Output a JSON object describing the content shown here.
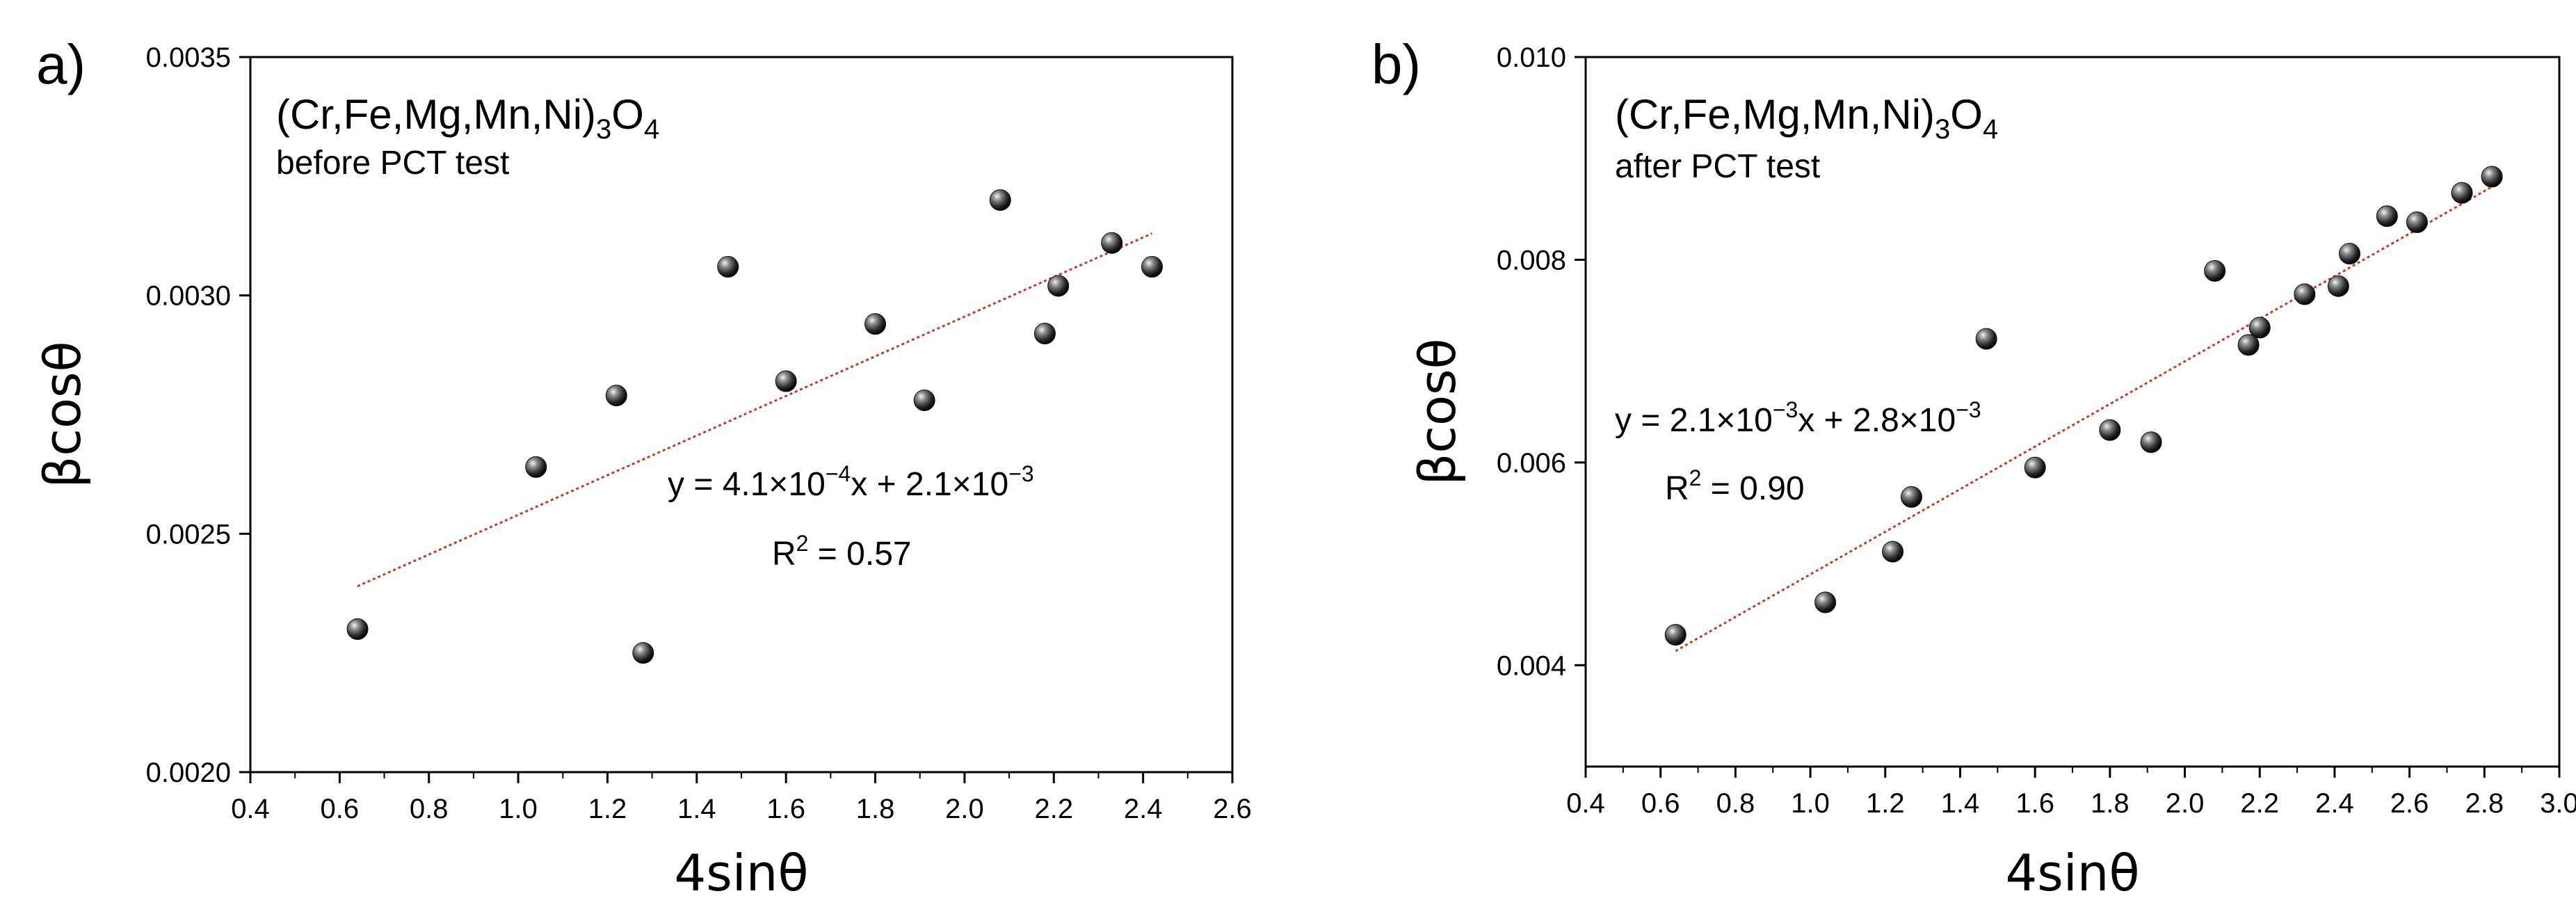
{
  "chart_data": [
    {
      "type": "scatter",
      "panel_label": "a)",
      "compound_parts": [
        "(Cr,Fe,Mg,Mn,Ni)",
        "3",
        "O",
        "4"
      ],
      "subtitle": "before PCT test",
      "xlabel": "4sinθ",
      "ylabel": "βcosθ",
      "xlim": [
        0.4,
        2.6
      ],
      "ylim": [
        0.002,
        0.0035
      ],
      "xticks": [
        0.4,
        0.6,
        0.8,
        1.0,
        1.2,
        1.4,
        1.6,
        1.8,
        2.0,
        2.2,
        2.4,
        2.6
      ],
      "xtick_labels": [
        "0.4",
        "0.6",
        "0.8",
        "1.0",
        "1.2",
        "1.4",
        "1.6",
        "1.8",
        "2.0",
        "2.2",
        "2.4",
        "2.6"
      ],
      "yticks": [
        0.002,
        0.0025,
        0.003,
        0.0035
      ],
      "ytick_labels": [
        "0.0020",
        "0.0025",
        "0.0030",
        "0.0035"
      ],
      "series": [
        {
          "name": "data",
          "x": [
            0.64,
            1.04,
            1.22,
            1.28,
            1.47,
            1.6,
            1.8,
            1.91,
            2.08,
            2.18,
            2.21,
            2.33,
            2.42
          ],
          "y": [
            0.0023,
            0.00264,
            0.00279,
            0.00225,
            0.00306,
            0.00282,
            0.00294,
            0.00278,
            0.0032,
            0.00292,
            0.00302,
            0.00311,
            0.00306
          ]
        }
      ],
      "fit": {
        "x_range": [
          0.64,
          2.42
        ],
        "y_range": [
          0.00239,
          0.00313
        ],
        "color": "#c0392b"
      },
      "equation_parts": [
        "y = 4.1×10",
        "−4",
        "x + 2.1×10",
        "−3"
      ],
      "r2_parts": [
        "R",
        "2",
        " = 0.57"
      ]
    },
    {
      "type": "scatter",
      "panel_label": "b)",
      "compound_parts": [
        "(Cr,Fe,Mg,Mn,Ni)",
        "3",
        "O",
        "4"
      ],
      "subtitle": "after PCT test",
      "xlabel": "4sinθ",
      "ylabel": "βcosθ",
      "xlim": [
        0.4,
        3.0
      ],
      "ylim": [
        0.003,
        0.01
      ],
      "xticks": [
        0.4,
        0.6,
        0.8,
        1.0,
        1.2,
        1.4,
        1.6,
        1.8,
        2.0,
        2.2,
        2.4,
        2.6,
        2.8,
        3.0
      ],
      "xtick_labels": [
        "0.4",
        "0.6",
        "0.8",
        "1.0",
        "1.2",
        "1.4",
        "1.6",
        "1.8",
        "2.0",
        "2.2",
        "2.4",
        "2.6",
        "2.8",
        "3.0"
      ],
      "yticks": [
        0.004,
        0.006,
        0.008,
        0.01
      ],
      "ytick_labels": [
        "0.004",
        "0.006",
        "0.008",
        "0.010"
      ],
      "series": [
        {
          "name": "data",
          "x": [
            0.64,
            1.04,
            1.22,
            1.27,
            1.47,
            1.6,
            1.8,
            1.91,
            2.08,
            2.17,
            2.2,
            2.32,
            2.41,
            2.44,
            2.54,
            2.62,
            2.74,
            2.82
          ],
          "y": [
            0.0043,
            0.00462,
            0.00512,
            0.00566,
            0.00722,
            0.00595,
            0.00632,
            0.0062,
            0.00789,
            0.00716,
            0.00733,
            0.00766,
            0.00774,
            0.00806,
            0.00843,
            0.00837,
            0.00866,
            0.00882
          ]
        }
      ],
      "fit": {
        "x_range": [
          0.64,
          2.82
        ],
        "y_range": [
          0.00414,
          0.00872
        ],
        "color": "#c0392b"
      },
      "equation_parts": [
        "y = 2.1×10",
        "−3",
        "x + 2.8×10",
        "−3"
      ],
      "r2_parts": [
        "R",
        "2",
        " = 0.90"
      ]
    }
  ]
}
